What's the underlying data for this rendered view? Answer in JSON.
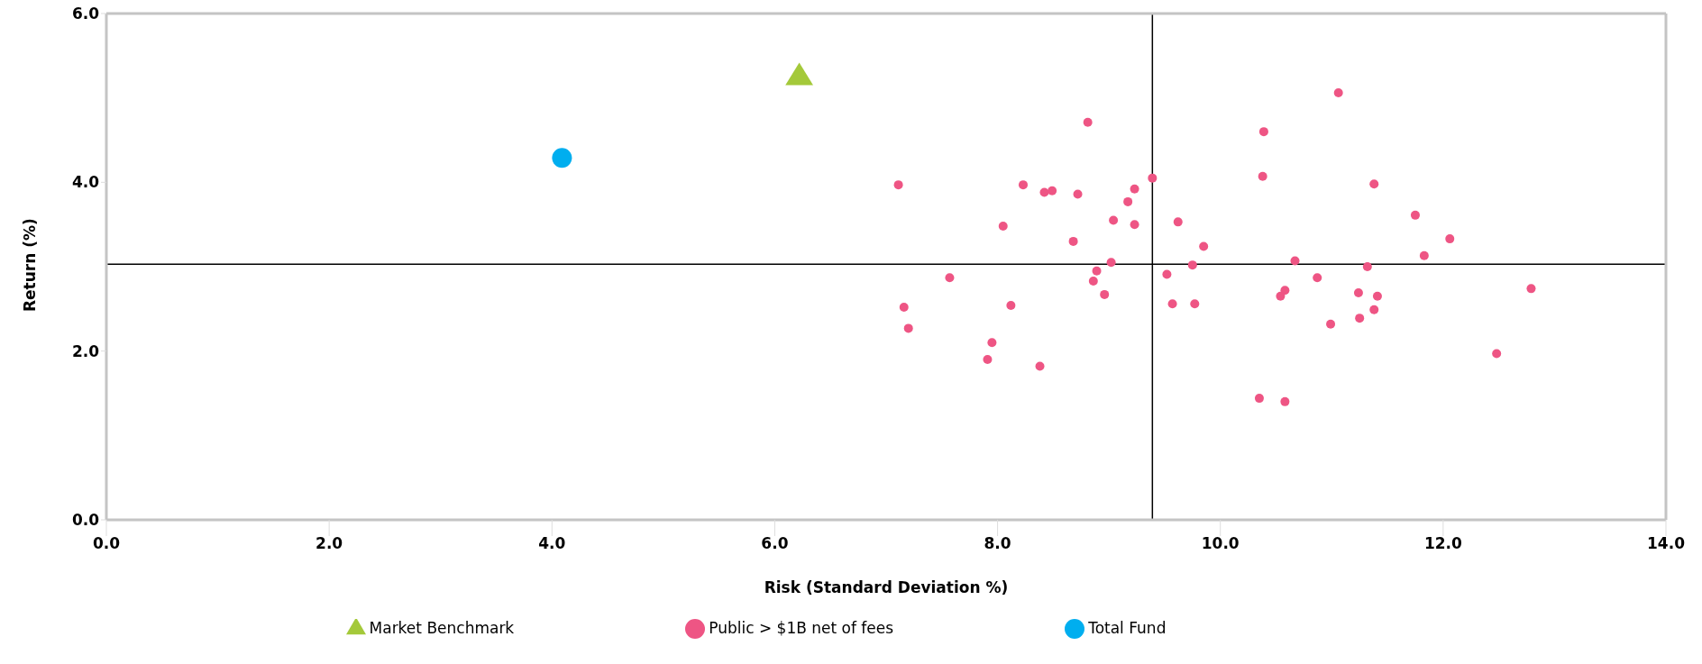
{
  "chart_data": {
    "type": "scatter",
    "xlabel": "Risk (Standard Deviation %)",
    "ylabel": "Return (%)",
    "xlim": [
      0,
      14
    ],
    "ylim": [
      0,
      6
    ],
    "xticks": [
      {
        "value": 0,
        "label": "0.0"
      },
      {
        "value": 2,
        "label": "2.0"
      },
      {
        "value": 4,
        "label": "4.0"
      },
      {
        "value": 6,
        "label": "6.0"
      },
      {
        "value": 8,
        "label": "8.0"
      },
      {
        "value": 10,
        "label": "10.0"
      },
      {
        "value": 12,
        "label": "12.0"
      },
      {
        "value": 14,
        "label": "14.0"
      }
    ],
    "yticks": [
      {
        "value": 0,
        "label": "0.0"
      },
      {
        "value": 2,
        "label": "2.0"
      },
      {
        "value": 4,
        "label": "4.0"
      },
      {
        "value": 6,
        "label": "6.0"
      }
    ],
    "legend": "bottom",
    "ref_lines": [
      {
        "axis": "x",
        "value": 9.39,
        "color": "#000000"
      },
      {
        "axis": "y",
        "value": 3.03,
        "color": "#000000"
      }
    ],
    "series": [
      {
        "name": "Public > $1B net of fees",
        "color": "#ee5584",
        "marker": "circle",
        "x": [
          8.81,
          9.39,
          7.11,
          8.23,
          8.42,
          8.49,
          8.72,
          9.23,
          9.17,
          8.05,
          9.04,
          9.23,
          9.62,
          8.68,
          9.85,
          9.02,
          9.75,
          8.89,
          9.52,
          7.57,
          8.86,
          8.96,
          7.16,
          8.12,
          9.57,
          9.77,
          7.2,
          7.95,
          7.91,
          8.38,
          11.06,
          10.39,
          10.38,
          11.38,
          11.75,
          12.06,
          11.83,
          10.67,
          11.32,
          10.87,
          10.58,
          10.54,
          11.24,
          11.41,
          11.38,
          11.25,
          10.99,
          12.79,
          12.48,
          10.35,
          10.58
        ],
        "values": [
          4.71,
          4.05,
          3.97,
          3.97,
          3.88,
          3.9,
          3.86,
          3.92,
          3.77,
          3.48,
          3.55,
          3.5,
          3.53,
          3.3,
          3.24,
          3.05,
          3.02,
          2.95,
          2.91,
          2.87,
          2.83,
          2.67,
          2.52,
          2.54,
          2.56,
          2.56,
          2.27,
          2.1,
          1.9,
          1.82,
          5.06,
          4.6,
          4.07,
          3.98,
          3.61,
          3.33,
          3.13,
          3.07,
          3.0,
          2.87,
          2.72,
          2.65,
          2.69,
          2.65,
          2.49,
          2.39,
          2.32,
          2.74,
          1.97,
          1.44,
          1.4
        ]
      },
      {
        "name": "Total Fund",
        "color": "#00aeef",
        "marker": "circle",
        "x": [
          4.09
        ],
        "values": [
          4.29
        ]
      },
      {
        "name": "Market Benchmark",
        "color": "#a4c93a",
        "marker": "triangle",
        "x": [
          6.22
        ],
        "values": [
          5.27
        ]
      }
    ]
  }
}
